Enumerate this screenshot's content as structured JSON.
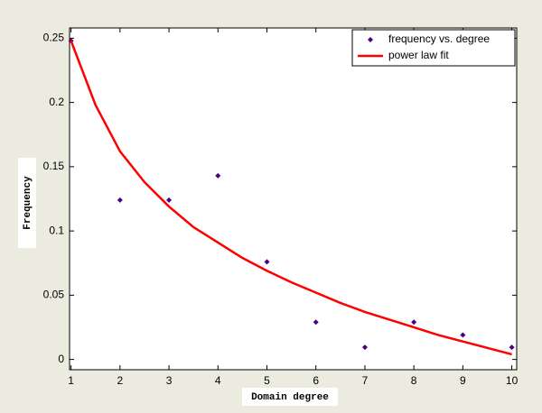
{
  "chart_data": {
    "type": "scatter",
    "xlabel": "Domain degree",
    "ylabel": "Frequency",
    "xlim": [
      0.97,
      10.1
    ],
    "ylim": [
      -0.008,
      0.258
    ],
    "xticks": [
      1,
      2,
      3,
      4,
      5,
      6,
      7,
      8,
      9,
      10
    ],
    "yticks": [
      0,
      0.05,
      0.1,
      0.15,
      0.2,
      0.25
    ],
    "legend": "top-right",
    "series": [
      {
        "name": "frequency vs. degree",
        "type": "scatter",
        "color": "#4b0082",
        "x": [
          1,
          2,
          3,
          4,
          5,
          6,
          7,
          8,
          9,
          10
        ],
        "values": [
          0.248,
          0.124,
          0.124,
          0.143,
          0.076,
          0.029,
          0.0095,
          0.029,
          0.019,
          0.0095
        ]
      },
      {
        "name": "power law fit",
        "type": "line",
        "color": "#ff0000",
        "x": [
          1,
          1.5,
          2,
          2.5,
          3,
          3.5,
          4,
          4.5,
          5,
          5.5,
          6,
          6.5,
          7,
          7.5,
          8,
          8.5,
          9,
          9.5,
          10
        ],
        "values": [
          0.248,
          0.198,
          0.162,
          0.138,
          0.119,
          0.103,
          0.091,
          0.079,
          0.069,
          0.06,
          0.052,
          0.044,
          0.037,
          0.031,
          0.025,
          0.019,
          0.014,
          0.009,
          0.004
        ]
      }
    ]
  }
}
